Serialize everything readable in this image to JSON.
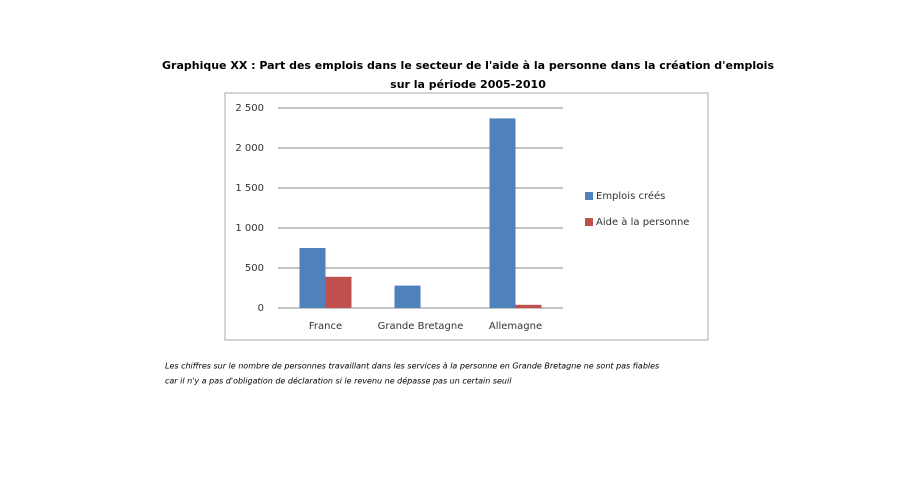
{
  "chart_data": {
    "type": "bar",
    "title": [
      "Graphique XX : Part des emplois dans le secteur de l'aide à la personne dans la création d'emplois",
      "sur la période 2005-2010"
    ],
    "categories": [
      "France",
      "Grande Bretagne",
      "Allemagne"
    ],
    "series": [
      {
        "name": "Emplois créés",
        "color": "#4f81bd",
        "values": [
          750,
          280,
          2370
        ]
      },
      {
        "name": "Aide à la personne",
        "color": "#c0504d",
        "values": [
          390,
          null,
          40
        ]
      }
    ],
    "ylim": [
      0,
      2500
    ],
    "yticks": [
      0,
      500,
      {
        "value": 1000,
        "label": "1 000"
      },
      {
        "value": 1500,
        "label": "1 500"
      },
      {
        "value": 2000,
        "label": "2 000"
      },
      {
        "value": 2500,
        "label": "2 500"
      }
    ],
    "grid": true,
    "legend": "right",
    "note": [
      "Les chiffres sur le nombre de personnes travaillant dans les services à la personne en Grande Bretagne ne sont pas fiables",
      "car il n'y a pas d'obligation de déclaration si le revenu ne dépasse pas un certain seuil"
    ]
  }
}
